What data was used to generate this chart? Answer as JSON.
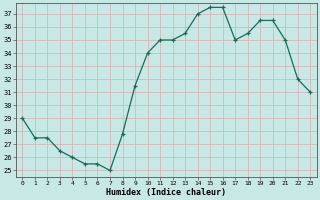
{
  "x": [
    0,
    1,
    2,
    3,
    4,
    5,
    6,
    7,
    8,
    9,
    10,
    11,
    12,
    13,
    14,
    15,
    16,
    17,
    18,
    19,
    20,
    21,
    22,
    23
  ],
  "y": [
    29,
    27.5,
    27.5,
    26.5,
    26,
    25.5,
    25.5,
    25,
    27.8,
    31.5,
    34,
    35,
    35,
    35.5,
    37,
    37.5,
    37.5,
    35,
    35.5,
    36.5,
    36.5,
    35,
    32,
    31
  ],
  "xlabel": "Humidex (Indice chaleur)",
  "ylabel_ticks": [
    25,
    26,
    27,
    28,
    29,
    30,
    31,
    32,
    33,
    34,
    35,
    36,
    37
  ],
  "ylim": [
    24.5,
    37.8
  ],
  "xlim": [
    -0.5,
    23.5
  ],
  "line_color": "#1a6b5a",
  "bg_color": "#c8e8e5",
  "grid_color": "#d4b8b8",
  "title": ""
}
